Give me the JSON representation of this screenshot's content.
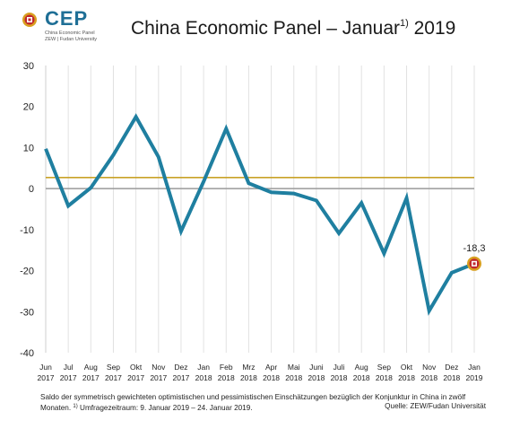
{
  "header": {
    "logo_text": "CEP",
    "logo_sub1": "China Economic Panel",
    "logo_sub2": "ZEW | Fudan University",
    "title_main": "China Economic Panel – Januar",
    "title_sup": "1)",
    "title_year": " 2019"
  },
  "footer": {
    "note_text": "Saldo der symmetrisch gewichteten optimistischen und pessimistischen Einschätzungen bezüglich der Konjunktur in China in zwölf Monaten.",
    "note_sup": "1)",
    "note_period": "Umfragezeitraum: 9. Januar 2019 – 24. Januar 2019.",
    "source": "Quelle: ZEW/Fudan Universität"
  },
  "colors": {
    "line": "#1f7fa0",
    "average": "#c9a227",
    "zero": "#9a9a9a",
    "marker_ring": "#d9a020",
    "marker_fill": "#c0282e"
  },
  "chart_data": {
    "type": "line",
    "categories": [
      "Jun 2017",
      "Jul 2017",
      "Aug 2017",
      "Sep 2017",
      "Okt 2017",
      "Nov 2017",
      "Dez 2017",
      "Jan 2018",
      "Feb 2018",
      "Mrz 2018",
      "Apr 2018",
      "Mai 2018",
      "Juni 2018",
      "Juli 2018",
      "Aug 2018",
      "Sep 2018",
      "Okt 2018",
      "Nov 2018",
      "Dez 2018",
      "Jan 2019"
    ],
    "category_month": [
      "Jun",
      "Jul",
      "Aug",
      "Sep",
      "Okt",
      "Nov",
      "Dez",
      "Jan",
      "Feb",
      "Mrz",
      "Apr",
      "Mai",
      "Juni",
      "Juli",
      "Aug",
      "Sep",
      "Okt",
      "Nov",
      "Dez",
      "Jan"
    ],
    "category_year": [
      "2017",
      "2017",
      "2017",
      "2017",
      "2017",
      "2017",
      "2017",
      "2018",
      "2018",
      "2018",
      "2018",
      "2018",
      "2018",
      "2018",
      "2018",
      "2018",
      "2018",
      "2018",
      "2018",
      "2019"
    ],
    "series": [
      {
        "values": [
          9.7,
          -4.2,
          0.2,
          8.2,
          17.5,
          7.7,
          -10.4,
          1.7,
          14.6,
          1.3,
          -0.9,
          -1.2,
          -2.9,
          -10.9,
          -3.5,
          -15.8,
          -2.3,
          -29.8,
          -20.5,
          -18.3
        ]
      }
    ],
    "average_line": 2.7,
    "last_label": "-18,3",
    "ylim": [
      -40,
      30
    ],
    "yticks": [
      30,
      20,
      10,
      0,
      -10,
      -20,
      -30,
      -40
    ],
    "grid": "vertical",
    "title": "China Economic Panel – Januar 2019",
    "xlabel": "",
    "ylabel": ""
  }
}
